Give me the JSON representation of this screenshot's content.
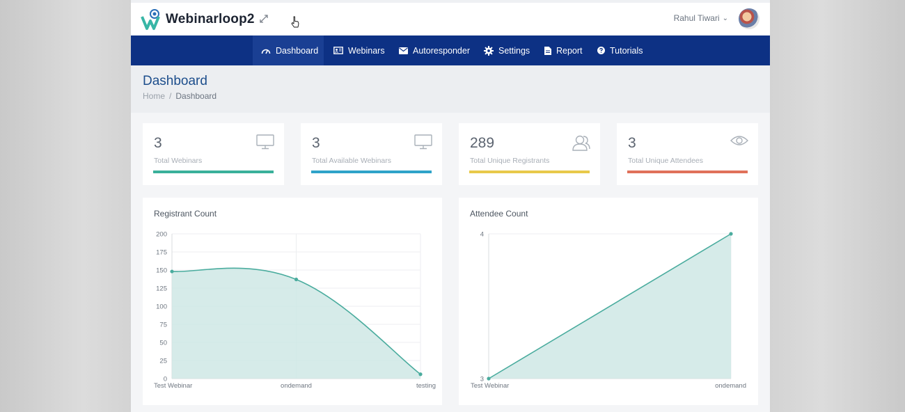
{
  "brand": {
    "name": "Webinarloop2"
  },
  "user": {
    "name": "Rahul Tiwari",
    "chevron": "⌄"
  },
  "nav": [
    {
      "label": "Dashboard",
      "icon": "dashboard-icon"
    },
    {
      "label": "Webinars",
      "icon": "webinars-icon"
    },
    {
      "label": "Autoresponder",
      "icon": "envelope-icon"
    },
    {
      "label": "Settings",
      "icon": "gear-icon"
    },
    {
      "label": "Report",
      "icon": "document-icon"
    },
    {
      "label": "Tutorials",
      "icon": "question-icon"
    }
  ],
  "page": {
    "title": "Dashboard",
    "breadcrumb": {
      "home": "Home",
      "separator": "/",
      "current": "Dashboard"
    }
  },
  "stats": [
    {
      "value": "3",
      "label": "Total Webinars",
      "color": "#3ab09a",
      "icon": "monitor-icon"
    },
    {
      "value": "3",
      "label": "Total Available Webinars",
      "color": "#2fa3c9",
      "icon": "monitor-icon"
    },
    {
      "value": "289",
      "label": "Total Unique Registrants",
      "color": "#e8c94a",
      "icon": "users-icon"
    },
    {
      "value": "3",
      "label": "Total Unique Attendees",
      "color": "#e0715a",
      "icon": "eye-icon"
    }
  ],
  "charts": {
    "registrant": {
      "title": "Registrant Count",
      "chart_data": {
        "type": "line",
        "title": "Registrant Count",
        "categories": [
          "Test Webinar",
          "ondemand",
          "testing"
        ],
        "series": [
          {
            "values": [
              148,
              137,
              6
            ]
          }
        ],
        "ylim": [
          0,
          200
        ],
        "yticks": [
          0,
          25,
          50,
          75,
          100,
          125,
          150,
          175,
          200
        ],
        "area_fill": true,
        "color": "#4aac9e"
      }
    },
    "attendee": {
      "title": "Attendee Count",
      "chart_data": {
        "type": "line",
        "title": "Attendee Count",
        "categories": [
          "Test Webinar",
          "ondemand"
        ],
        "series": [
          {
            "values": [
              3,
              4
            ]
          }
        ],
        "ylim": [
          3,
          4
        ],
        "yticks": [
          3,
          4
        ],
        "area_fill": true,
        "color": "#4aac9e"
      }
    }
  }
}
